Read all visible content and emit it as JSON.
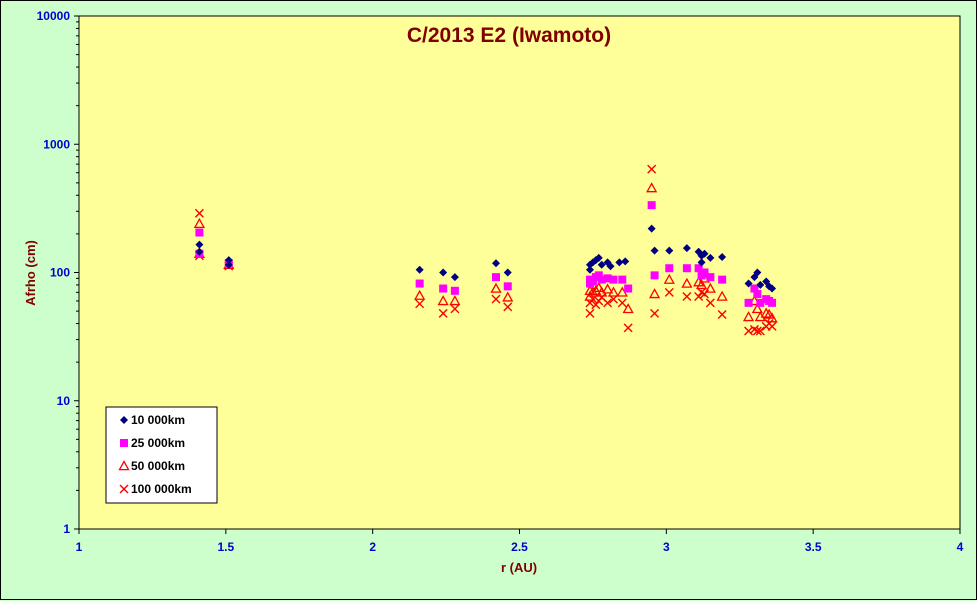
{
  "chart_data": {
    "type": "scatter",
    "title": "C/2013 E2 (Iwamoto)",
    "xlabel": "r (AU)",
    "ylabel": "Afrho (cm)",
    "xlim": [
      1,
      4
    ],
    "ylim": [
      1,
      10000
    ],
    "yscale": "log",
    "x_ticks": [
      "1",
      "1.5",
      "2",
      "2.5",
      "3",
      "3.5",
      "4"
    ],
    "y_ticks": [
      "1",
      "10",
      "100",
      "1000",
      "10000"
    ],
    "legend_position": "bottom-left",
    "colors": {
      "plot_background": "#ffff99",
      "outer_background": "#ccffcc",
      "title": "#800000",
      "ticks": "#0000cc"
    },
    "series": [
      {
        "name": "10 000km",
        "marker": "diamond",
        "color": "#000080",
        "points": [
          [
            1.41,
            165
          ],
          [
            1.41,
            145
          ],
          [
            1.51,
            125
          ],
          [
            1.51,
            115
          ],
          [
            2.16,
            105
          ],
          [
            2.24,
            100
          ],
          [
            2.28,
            92
          ],
          [
            2.42,
            118
          ],
          [
            2.46,
            100
          ],
          [
            2.74,
            115
          ],
          [
            2.74,
            105
          ],
          [
            2.75,
            120
          ],
          [
            2.76,
            125
          ],
          [
            2.77,
            130
          ],
          [
            2.78,
            115
          ],
          [
            2.8,
            120
          ],
          [
            2.81,
            112
          ],
          [
            2.84,
            120
          ],
          [
            2.86,
            122
          ],
          [
            2.95,
            220
          ],
          [
            2.96,
            148
          ],
          [
            3.01,
            148
          ],
          [
            3.07,
            155
          ],
          [
            3.11,
            145
          ],
          [
            3.12,
            135
          ],
          [
            3.12,
            120
          ],
          [
            3.13,
            140
          ],
          [
            3.15,
            130
          ],
          [
            3.19,
            132
          ],
          [
            3.28,
            82
          ],
          [
            3.3,
            92
          ],
          [
            3.31,
            100
          ],
          [
            3.32,
            80
          ],
          [
            3.34,
            85
          ],
          [
            3.35,
            78
          ],
          [
            3.36,
            75
          ]
        ]
      },
      {
        "name": "25 000km",
        "marker": "square",
        "color": "#ff00ff",
        "points": [
          [
            1.41,
            205
          ],
          [
            1.41,
            140
          ],
          [
            1.51,
            118
          ],
          [
            2.16,
            82
          ],
          [
            2.24,
            75
          ],
          [
            2.28,
            72
          ],
          [
            2.42,
            92
          ],
          [
            2.46,
            78
          ],
          [
            2.74,
            88
          ],
          [
            2.74,
            82
          ],
          [
            2.75,
            85
          ],
          [
            2.76,
            92
          ],
          [
            2.77,
            95
          ],
          [
            2.78,
            88
          ],
          [
            2.8,
            90
          ],
          [
            2.82,
            88
          ],
          [
            2.85,
            88
          ],
          [
            2.87,
            75
          ],
          [
            2.95,
            335
          ],
          [
            2.96,
            95
          ],
          [
            3.01,
            108
          ],
          [
            3.07,
            108
          ],
          [
            3.11,
            108
          ],
          [
            3.12,
            95
          ],
          [
            3.13,
            100
          ],
          [
            3.15,
            92
          ],
          [
            3.19,
            88
          ],
          [
            3.28,
            58
          ],
          [
            3.3,
            75
          ],
          [
            3.31,
            68
          ],
          [
            3.32,
            58
          ],
          [
            3.34,
            62
          ],
          [
            3.35,
            60
          ],
          [
            3.36,
            58
          ]
        ]
      },
      {
        "name": "50 000km",
        "marker": "triangle",
        "color": "#ff0000",
        "points": [
          [
            1.41,
            240
          ],
          [
            1.41,
            140
          ],
          [
            1.51,
            115
          ],
          [
            2.16,
            66
          ],
          [
            2.24,
            60
          ],
          [
            2.28,
            60
          ],
          [
            2.42,
            75
          ],
          [
            2.46,
            64
          ],
          [
            2.74,
            72
          ],
          [
            2.74,
            65
          ],
          [
            2.75,
            70
          ],
          [
            2.76,
            72
          ],
          [
            2.77,
            76
          ],
          [
            2.78,
            70
          ],
          [
            2.8,
            74
          ],
          [
            2.82,
            70
          ],
          [
            2.85,
            70
          ],
          [
            2.87,
            52
          ],
          [
            2.95,
            455
          ],
          [
            2.96,
            68
          ],
          [
            3.01,
            88
          ],
          [
            3.07,
            82
          ],
          [
            3.11,
            84
          ],
          [
            3.12,
            80
          ],
          [
            3.13,
            90
          ],
          [
            3.15,
            75
          ],
          [
            3.19,
            65
          ],
          [
            3.28,
            45
          ],
          [
            3.3,
            60
          ],
          [
            3.31,
            52
          ],
          [
            3.32,
            45
          ],
          [
            3.34,
            48
          ],
          [
            3.35,
            47
          ],
          [
            3.36,
            44
          ]
        ]
      },
      {
        "name": "100 000km",
        "marker": "cross",
        "color": "#ff0000",
        "points": [
          [
            1.41,
            290
          ],
          [
            1.41,
            135
          ],
          [
            1.51,
            112
          ],
          [
            2.16,
            57
          ],
          [
            2.24,
            48
          ],
          [
            2.28,
            52
          ],
          [
            2.42,
            62
          ],
          [
            2.46,
            54
          ],
          [
            2.74,
            48
          ],
          [
            2.74,
            58
          ],
          [
            2.75,
            62
          ],
          [
            2.76,
            56
          ],
          [
            2.77,
            60
          ],
          [
            2.78,
            64
          ],
          [
            2.8,
            58
          ],
          [
            2.82,
            62
          ],
          [
            2.85,
            58
          ],
          [
            2.87,
            37
          ],
          [
            2.95,
            640
          ],
          [
            2.96,
            48
          ],
          [
            3.01,
            70
          ],
          [
            3.07,
            65
          ],
          [
            3.11,
            65
          ],
          [
            3.12,
            70
          ],
          [
            3.13,
            68
          ],
          [
            3.15,
            58
          ],
          [
            3.19,
            47
          ],
          [
            3.28,
            35
          ],
          [
            3.3,
            36
          ],
          [
            3.31,
            35
          ],
          [
            3.32,
            35
          ],
          [
            3.34,
            38
          ],
          [
            3.35,
            40
          ],
          [
            3.36,
            38
          ]
        ]
      }
    ]
  }
}
